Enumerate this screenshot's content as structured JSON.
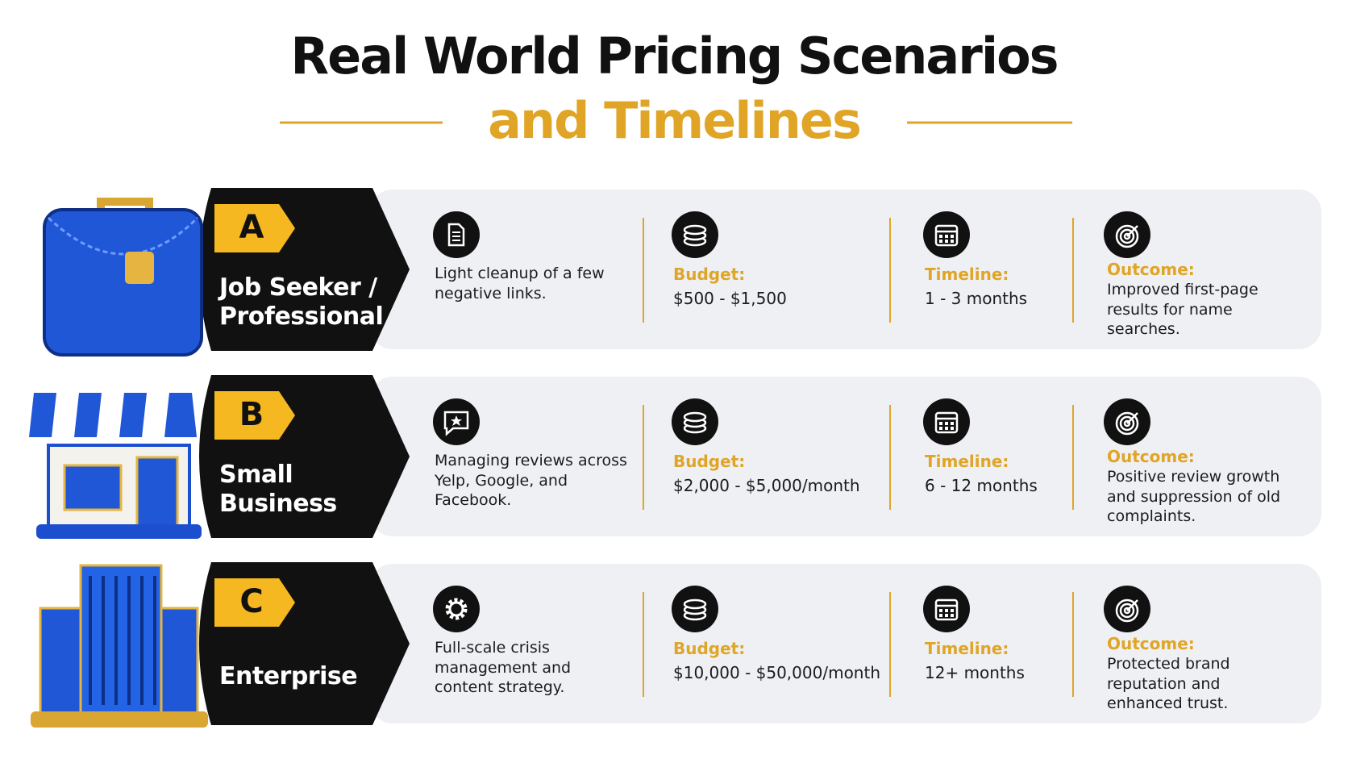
{
  "title": {
    "line1": "Real World Pricing Scenarios",
    "line2": "and Timelines"
  },
  "scenarios": [
    {
      "letter": "A",
      "name_lines": [
        "Job Seeker /",
        "Professional"
      ],
      "description": "Light cleanup of a few negative links.",
      "budget_label": "Budget:",
      "budget": "$500 - $1,500",
      "timeline_label": "Timeline:",
      "timeline": "1 - 3 months",
      "outcome_label": "Outcome:",
      "outcome": "Improved first-page results for name searches."
    },
    {
      "letter": "B",
      "name_lines": [
        "Small",
        "Business"
      ],
      "description": "Managing reviews across Yelp, Google, and Facebook.",
      "budget_label": "Budget:",
      "budget": "$2,000 - $5,000/month",
      "timeline_label": "Timeline:",
      "timeline": "6 - 12 months",
      "outcome_label": "Outcome:",
      "outcome": "Positive review growth and suppression of old complaints."
    },
    {
      "letter": "C",
      "name_lines": [
        "Enterprise"
      ],
      "description": "Full-scale crisis management and content strategy.",
      "budget_label": "Budget:",
      "budget": "$10,000 - $50,000/month",
      "timeline_label": "Timeline:",
      "timeline": "12+ months",
      "outcome_label": "Outcome:",
      "outcome": "Protected brand reputation and enhanced trust."
    }
  ]
}
